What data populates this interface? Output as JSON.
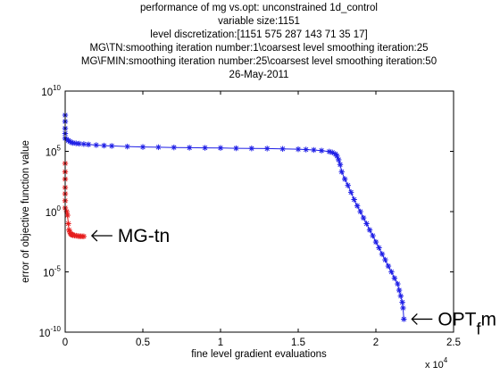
{
  "chart_data": {
    "type": "scatter",
    "title_lines": [
      "performance of mg vs.opt: unconstrained 1d_control",
      "variable size:1151",
      "level discretization:[1151 575 287 143 71 35 17]",
      "MG\\TN:smoothing iteration number:1\\coarsest level smoothing iteration:25",
      "MG\\FMIN:smoothing iteration number:25\\coarsest level smoothing iteration:50",
      "26-May-2011"
    ],
    "xlabel": "fine level gradient evaluations",
    "ylabel": "error of objective function value",
    "x_multiplier_label": {
      "base": "x 10",
      "exponent": "4"
    },
    "xlim": [
      0,
      25000
    ],
    "ylim": [
      1e-10,
      10000000000.0
    ],
    "yscale": "log",
    "grid": false,
    "xticks": [
      {
        "value": 0,
        "label": "0"
      },
      {
        "value": 5000,
        "label": "0.5"
      },
      {
        "value": 10000,
        "label": "1"
      },
      {
        "value": 15000,
        "label": "1.5"
      },
      {
        "value": 20000,
        "label": "2"
      },
      {
        "value": 25000,
        "label": "2.5"
      }
    ],
    "yticks": [
      {
        "value": 1e-10,
        "base": "10",
        "exp": "-10"
      },
      {
        "value": 1e-05,
        "base": "10",
        "exp": "-5"
      },
      {
        "value": 1,
        "base": "10",
        "exp": "0"
      },
      {
        "value": 100000.0,
        "base": "10",
        "exp": "5"
      },
      {
        "value": 10000000000.0,
        "base": "10",
        "exp": "10"
      }
    ],
    "series": [
      {
        "name": "OPT",
        "color": "#1f1fe6",
        "marker": "asterisk",
        "annotation": {
          "text": "OPT",
          "subscript": "f",
          "tail": "m",
          "x": 21800,
          "y": 1.2e-09
        },
        "points": [
          [
            0,
            100000000.0
          ],
          [
            0,
            30000000.0
          ],
          [
            0,
            8000000.0
          ],
          [
            0,
            3000000.0
          ],
          [
            0,
            1200000.0
          ],
          [
            100,
            1000000.0
          ],
          [
            200,
            800000.0
          ],
          [
            300,
            650000.0
          ],
          [
            400,
            550000.0
          ],
          [
            500,
            500000.0
          ],
          [
            700,
            460000.0
          ],
          [
            900,
            430000.0
          ],
          [
            1200,
            400000.0
          ],
          [
            1500,
            370000.0
          ],
          [
            2000,
            330000.0
          ],
          [
            2500,
            300000.0
          ],
          [
            3000,
            280000.0
          ],
          [
            4000,
            250000.0
          ],
          [
            5000,
            230000.0
          ],
          [
            6000,
            220000.0
          ],
          [
            7000,
            210000.0
          ],
          [
            8000,
            200000.0
          ],
          [
            9000,
            195000.0
          ],
          [
            10000,
            190000.0
          ],
          [
            11000,
            180000.0
          ],
          [
            12000,
            175000.0
          ],
          [
            13000,
            170000.0
          ],
          [
            14000,
            160000.0
          ],
          [
            15000,
            150000.0
          ],
          [
            15500,
            140000.0
          ],
          [
            16000,
            130000.0
          ],
          [
            16500,
            115000.0
          ],
          [
            17000,
            95000.0
          ],
          [
            17200,
            80000.0
          ],
          [
            17400,
            60000.0
          ],
          [
            17500,
            40000.0
          ],
          [
            17600,
            20000.0
          ],
          [
            17700,
            8000.0
          ],
          [
            17800,
            2000.0
          ],
          [
            18000,
            500.0
          ],
          [
            18200,
            150.0
          ],
          [
            18400,
            40
          ],
          [
            18600,
            10
          ],
          [
            18800,
            3
          ],
          [
            19000,
            1
          ],
          [
            19200,
            0.3
          ],
          [
            19400,
            0.1
          ],
          [
            19600,
            0.03
          ],
          [
            19800,
            0.01
          ],
          [
            20000,
            0.003
          ],
          [
            20200,
            0.001
          ],
          [
            20400,
            0.0003
          ],
          [
            20600,
            0.0001
          ],
          [
            20800,
            3e-05
          ],
          [
            21000,
            1e-05
          ],
          [
            21200,
            3e-06
          ],
          [
            21400,
            1e-06
          ],
          [
            21500,
            3e-07
          ],
          [
            21600,
            1e-07
          ],
          [
            21700,
            3e-08
          ],
          [
            21750,
            1e-08
          ],
          [
            21800,
            1.2e-09
          ]
        ]
      },
      {
        "name": "MG-tn",
        "color": "#e61f1f",
        "marker": "asterisk",
        "annotation": {
          "text": "MG-tn",
          "x": 1200,
          "y": 0.01
        },
        "points": [
          [
            0,
            10000.0
          ],
          [
            0,
            2000.0
          ],
          [
            0,
            500
          ],
          [
            0,
            100
          ],
          [
            0,
            30
          ],
          [
            0,
            8
          ],
          [
            0,
            2
          ],
          [
            100,
            1
          ],
          [
            150,
            0.5
          ],
          [
            200,
            0.1
          ],
          [
            250,
            0.03
          ],
          [
            300,
            0.02
          ],
          [
            350,
            0.015
          ],
          [
            400,
            0.013
          ],
          [
            450,
            0.012
          ],
          [
            500,
            0.011
          ],
          [
            600,
            0.0105
          ],
          [
            700,
            0.01
          ],
          [
            800,
            0.0095
          ],
          [
            900,
            0.009
          ],
          [
            1000,
            0.009
          ],
          [
            1100,
            0.0088
          ],
          [
            1200,
            0.0088
          ]
        ]
      }
    ]
  }
}
